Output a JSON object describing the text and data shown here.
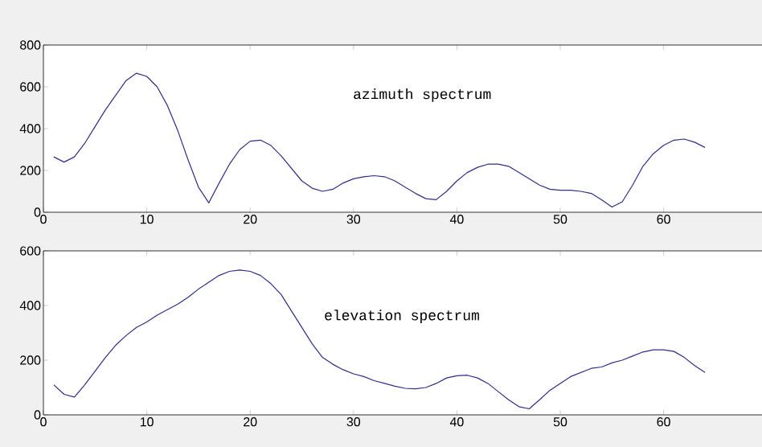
{
  "chart_data": [
    {
      "type": "line",
      "annotations": [
        "azimuth spectrum"
      ],
      "x": [
        1,
        2,
        3,
        4,
        5,
        6,
        7,
        8,
        9,
        10,
        11,
        12,
        13,
        14,
        15,
        16,
        17,
        18,
        19,
        20,
        21,
        22,
        23,
        24,
        25,
        26,
        27,
        28,
        29,
        30,
        31,
        32,
        33,
        34,
        35,
        36,
        37,
        38,
        39,
        40,
        41,
        42,
        43,
        44,
        45,
        46,
        47,
        48,
        49,
        50,
        51,
        52,
        53,
        54,
        55,
        56,
        57,
        58,
        59,
        60,
        61,
        62,
        63,
        64
      ],
      "series": [
        {
          "color": "#2e2e86",
          "values": [
            265,
            240,
            265,
            330,
            410,
            490,
            560,
            630,
            665,
            650,
            600,
            510,
            390,
            250,
            120,
            45,
            140,
            230,
            300,
            340,
            345,
            320,
            270,
            210,
            150,
            115,
            100,
            110,
            140,
            160,
            170,
            175,
            170,
            150,
            120,
            90,
            65,
            60,
            100,
            150,
            190,
            215,
            230,
            230,
            220,
            190,
            160,
            130,
            110,
            105,
            105,
            100,
            90,
            60,
            25,
            50,
            130,
            220,
            280,
            320,
            345,
            350,
            335,
            310
          ]
        }
      ],
      "xlim": [
        0,
        70
      ],
      "xticks": [
        0,
        10,
        20,
        30,
        40,
        50,
        60
      ],
      "ylim": [
        0,
        800
      ],
      "yticks": [
        0,
        200,
        400,
        600,
        800
      ],
      "grid": false,
      "marker": "none",
      "line_style": "solid"
    },
    {
      "type": "line",
      "annotations": [
        "elevation spectrum"
      ],
      "x": [
        1,
        2,
        3,
        4,
        5,
        6,
        7,
        8,
        9,
        10,
        11,
        12,
        13,
        14,
        15,
        16,
        17,
        18,
        19,
        20,
        21,
        22,
        23,
        24,
        25,
        26,
        27,
        28,
        29,
        30,
        31,
        32,
        33,
        34,
        35,
        36,
        37,
        38,
        39,
        40,
        41,
        42,
        43,
        44,
        45,
        46,
        47,
        48,
        49,
        50,
        51,
        52,
        53,
        54,
        55,
        56,
        57,
        58,
        59,
        60,
        61,
        62,
        63,
        64
      ],
      "series": [
        {
          "color": "#2e2e86",
          "values": [
            110,
            75,
            65,
            110,
            160,
            210,
            255,
            290,
            320,
            340,
            365,
            385,
            405,
            430,
            460,
            485,
            510,
            525,
            530,
            525,
            510,
            480,
            440,
            380,
            320,
            260,
            210,
            185,
            165,
            150,
            140,
            125,
            115,
            105,
            97,
            95,
            100,
            115,
            135,
            143,
            145,
            135,
            115,
            85,
            55,
            30,
            22,
            55,
            90,
            115,
            140,
            155,
            170,
            175,
            190,
            200,
            215,
            230,
            238,
            238,
            232,
            210,
            180,
            155
          ]
        }
      ],
      "xlim": [
        0,
        70
      ],
      "xticks": [
        0,
        10,
        20,
        30,
        40,
        50,
        60
      ],
      "ylim": [
        0,
        600
      ],
      "yticks": [
        0,
        200,
        400,
        600
      ],
      "grid": false,
      "marker": "none",
      "line_style": "solid"
    }
  ]
}
